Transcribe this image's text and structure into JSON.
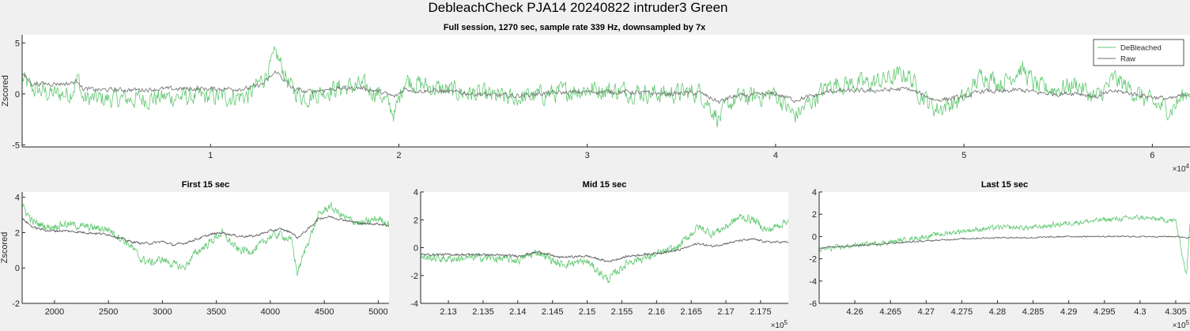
{
  "figure_title": "DebleachCheck PJA14 20240822  intruder3 Green",
  "chart_data": [
    {
      "name": "full-session",
      "type": "line",
      "title": "Full session, 1270 sec, sample rate 339 Hz, downsampled by 7x",
      "xlabel": "",
      "ylabel": "Zscored",
      "xlim": [
        0,
        62000
      ],
      "ylim": [
        -5.2,
        5.8
      ],
      "xticks": [
        10000,
        20000,
        30000,
        40000,
        50000,
        60000
      ],
      "xticklabels": [
        "1",
        "2",
        "3",
        "4",
        "5",
        "6"
      ],
      "x_exponent": "×10",
      "x_exponent_power": "4",
      "yticks": [
        5,
        0,
        -5
      ],
      "yticklabels": [
        "5",
        "0",
        "-5"
      ],
      "legend": {
        "position": "top-right",
        "entries": [
          "DeBleached",
          "Raw"
        ]
      },
      "series": [
        {
          "name": "DeBleached",
          "color": "#5fc870",
          "noise": 1.5,
          "x": [
            0,
            500,
            1500,
            2500,
            3000,
            3200,
            4000,
            6000,
            8000,
            10000,
            12000,
            12800,
            13500,
            14300,
            15000,
            16500,
            18000,
            19000,
            19800,
            20300,
            21000,
            22000,
            24000,
            26000,
            28000,
            30000,
            32000,
            34000,
            36000,
            37000,
            37500,
            38000,
            40000,
            41000,
            42000,
            43000,
            45000,
            47000,
            47700,
            48500,
            50000,
            51000,
            52000,
            53000,
            54000,
            55000,
            56000,
            57000,
            58000,
            60000,
            61000,
            62000
          ],
          "y": [
            1.5,
            0.5,
            0.0,
            0.0,
            1.5,
            -0.5,
            -0.5,
            -0.5,
            -0.3,
            -0.3,
            -0.2,
            1.5,
            3.8,
            0.5,
            -0.3,
            0.5,
            0.8,
            0.0,
            -2.0,
            1.5,
            1.0,
            0.5,
            0.0,
            -0.5,
            0.0,
            0.5,
            0.3,
            0.0,
            0.2,
            -2.5,
            -1.0,
            -0.5,
            0.0,
            -2.2,
            -0.5,
            1.0,
            1.0,
            2.0,
            0.0,
            -1.5,
            -0.5,
            2.0,
            1.0,
            2.5,
            0.5,
            0.5,
            1.0,
            -0.5,
            1.5,
            -1.0,
            -1.5,
            0.5
          ]
        },
        {
          "name": "Raw",
          "color": "#6f6f6f",
          "noise": 0.35,
          "x": [
            0,
            500,
            1500,
            2500,
            3000,
            3200,
            4000,
            6000,
            8000,
            10000,
            12000,
            12800,
            13500,
            14300,
            15000,
            16500,
            18000,
            19000,
            19800,
            20300,
            21000,
            22000,
            24000,
            26000,
            28000,
            30000,
            32000,
            34000,
            36000,
            37000,
            37500,
            38000,
            40000,
            41000,
            42000,
            43000,
            45000,
            47000,
            47700,
            48500,
            50000,
            51000,
            52000,
            53000,
            54000,
            55000,
            56000,
            57000,
            58000,
            60000,
            61000,
            62000
          ],
          "y": [
            2.0,
            1.0,
            1.0,
            1.0,
            1.3,
            0.5,
            0.4,
            0.4,
            0.5,
            0.5,
            0.5,
            1.0,
            2.2,
            0.6,
            0.2,
            0.5,
            0.6,
            0.2,
            -0.3,
            0.5,
            0.3,
            0.3,
            0.0,
            -0.2,
            0.1,
            0.2,
            0.2,
            0.0,
            0.1,
            -0.8,
            -0.4,
            -0.2,
            0.0,
            -0.6,
            -0.2,
            0.3,
            0.3,
            0.5,
            0.0,
            -0.6,
            -0.3,
            0.3,
            0.2,
            0.4,
            0.1,
            0.0,
            0.1,
            -0.3,
            0.3,
            -0.3,
            -0.5,
            0.1
          ]
        }
      ]
    },
    {
      "name": "first-15-sec",
      "type": "line",
      "title": "First 15 sec",
      "xlabel": "",
      "ylabel": "Zscored",
      "xlim": [
        1700,
        5100
      ],
      "ylim": [
        -2,
        4.3
      ],
      "xticks": [
        2000,
        2500,
        3000,
        3500,
        4000,
        4500,
        5000
      ],
      "xticklabels": [
        "2000",
        "2500",
        "3000",
        "3500",
        "4000",
        "4500",
        "5000"
      ],
      "yticks": [
        4,
        2,
        0,
        -2
      ],
      "yticklabels": [
        "4",
        "2",
        "0",
        "-2"
      ],
      "series": [
        {
          "name": "DeBleached",
          "color": "#5fc870",
          "noise": 0.35,
          "x": [
            1700,
            1800,
            1950,
            2100,
            2300,
            2500,
            2700,
            2800,
            2900,
            3000,
            3100,
            3200,
            3300,
            3450,
            3550,
            3700,
            3850,
            4000,
            4100,
            4200,
            4250,
            4350,
            4450,
            4550,
            4700,
            4850,
            5000,
            5100
          ],
          "y": [
            3.5,
            2.6,
            2.3,
            2.5,
            2.3,
            2.2,
            1.3,
            0.5,
            0.3,
            0.5,
            0.2,
            0.0,
            0.8,
            1.5,
            2.0,
            1.0,
            1.0,
            1.8,
            1.9,
            1.5,
            -0.3,
            1.5,
            3.0,
            3.5,
            2.8,
            2.5,
            2.8,
            2.5
          ]
        },
        {
          "name": "Raw",
          "color": "#555555",
          "noise": 0.1,
          "x": [
            1700,
            1800,
            1950,
            2100,
            2300,
            2500,
            2700,
            2800,
            2900,
            3000,
            3100,
            3200,
            3300,
            3450,
            3550,
            3700,
            3850,
            4000,
            4100,
            4200,
            4250,
            4350,
            4450,
            4550,
            4700,
            4850,
            5000,
            5100
          ],
          "y": [
            2.8,
            2.3,
            2.1,
            2.1,
            2.0,
            1.9,
            1.5,
            1.4,
            1.4,
            1.5,
            1.3,
            1.4,
            1.6,
            1.9,
            2.0,
            1.8,
            1.8,
            2.1,
            2.2,
            2.0,
            1.7,
            2.2,
            2.8,
            2.9,
            2.7,
            2.5,
            2.5,
            2.4
          ]
        }
      ]
    },
    {
      "name": "mid-15-sec",
      "type": "line",
      "title": "Mid 15 sec",
      "xlabel": "",
      "ylabel": "",
      "xlim": [
        212600,
        217900
      ],
      "ylim": [
        -4,
        4
      ],
      "xticks": [
        213000,
        213500,
        214000,
        214500,
        215000,
        215500,
        216000,
        216500,
        217000,
        217500
      ],
      "xticklabels": [
        "2.13",
        "2.135",
        "2.14",
        "2.145",
        "2.15",
        "2.155",
        "2.16",
        "2.165",
        "2.17",
        "2.175"
      ],
      "x_exponent": "×10",
      "x_exponent_power": "5",
      "yticks": [
        4,
        2,
        0,
        -2,
        -4
      ],
      "yticklabels": [
        "4",
        "2",
        "0",
        "-2",
        "-4"
      ],
      "series": [
        {
          "name": "DeBleached",
          "color": "#5fc870",
          "noise": 0.45,
          "x": [
            212600,
            213000,
            213500,
            214000,
            214300,
            214600,
            215000,
            215300,
            215600,
            216000,
            216300,
            216600,
            216800,
            217000,
            217200,
            217400,
            217600,
            217900
          ],
          "y": [
            -0.7,
            -0.8,
            -0.7,
            -0.9,
            -0.3,
            -1.2,
            -1.0,
            -2.3,
            -1.0,
            -0.5,
            0.0,
            1.5,
            1.0,
            1.5,
            2.2,
            2.0,
            1.2,
            2.0
          ]
        },
        {
          "name": "Raw",
          "color": "#555555",
          "noise": 0.12,
          "x": [
            212600,
            213000,
            213500,
            214000,
            214300,
            214600,
            215000,
            215300,
            215600,
            216000,
            216300,
            216600,
            216800,
            217000,
            217200,
            217400,
            217600,
            217900
          ],
          "y": [
            -0.5,
            -0.5,
            -0.5,
            -0.6,
            -0.3,
            -0.7,
            -0.6,
            -1.0,
            -0.6,
            -0.4,
            -0.2,
            0.3,
            0.1,
            0.3,
            0.5,
            0.6,
            0.4,
            0.4
          ]
        }
      ]
    },
    {
      "name": "last-15-sec",
      "type": "line",
      "title": "Last 15 sec",
      "xlabel": "",
      "ylabel": "",
      "xlim": [
        425500,
        430700
      ],
      "ylim": [
        -6,
        4
      ],
      "xticks": [
        426000,
        426500,
        427000,
        427500,
        428000,
        428500,
        429000,
        429500,
        430000,
        430500
      ],
      "xticklabels": [
        "4.26",
        "4.265",
        "4.27",
        "4.275",
        "4.28",
        "4.285",
        "4.29",
        "4.295",
        "4.3",
        "4.305"
      ],
      "x_exponent": "×10",
      "x_exponent_power": "5",
      "yticks": [
        4,
        2,
        0,
        -2,
        -4,
        -6
      ],
      "yticklabels": [
        "4",
        "2",
        "0",
        "-2",
        "-4",
        "-6"
      ],
      "series": [
        {
          "name": "DeBleached",
          "color": "#5fc870",
          "noise": 0.35,
          "x": [
            425500,
            426000,
            426500,
            427000,
            427500,
            428000,
            428500,
            429000,
            429500,
            430000,
            430500,
            430650,
            430700
          ],
          "y": [
            -1.2,
            -0.8,
            -0.5,
            0.0,
            0.5,
            0.8,
            0.8,
            1.2,
            1.5,
            1.7,
            1.4,
            -3.5,
            1.0
          ]
        },
        {
          "name": "Raw",
          "color": "#555555",
          "noise": 0.1,
          "x": [
            425500,
            426000,
            426500,
            427000,
            427500,
            428000,
            428500,
            429000,
            429500,
            430000,
            430500,
            430700
          ],
          "y": [
            -1.0,
            -0.8,
            -0.6,
            -0.4,
            -0.2,
            -0.1,
            -0.1,
            0.0,
            0.0,
            0.0,
            0.0,
            -0.1
          ]
        }
      ]
    }
  ]
}
